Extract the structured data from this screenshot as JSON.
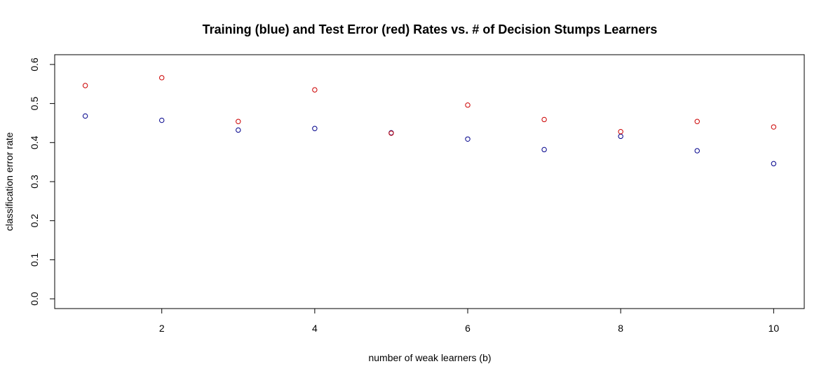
{
  "chart_data": {
    "type": "scatter",
    "title": "Training (blue) and Test Error (red) Rates vs. # of Decision Stumps Learners",
    "xlabel": "number of weak learners (b)",
    "ylabel": "classification error rate",
    "xlim": [
      0.6,
      10.4
    ],
    "ylim": [
      -0.025,
      0.625
    ],
    "xticks": [
      2,
      4,
      6,
      8,
      10
    ],
    "yticks": [
      0.0,
      0.1,
      0.2,
      0.3,
      0.4,
      0.5,
      0.6
    ],
    "xtick_labels": [
      "2",
      "4",
      "6",
      "8",
      "10"
    ],
    "ytick_labels": [
      "0.0",
      "0.1",
      "0.2",
      "0.3",
      "0.4",
      "0.5",
      "0.6"
    ],
    "grid": false,
    "x": [
      1,
      2,
      3,
      4,
      5,
      6,
      7,
      8,
      9,
      10
    ],
    "series": [
      {
        "color": "#00008B",
        "values": [
          0.468,
          0.457,
          0.432,
          0.436,
          0.425,
          0.409,
          0.382,
          0.416,
          0.379,
          0.346
        ]
      },
      {
        "color": "#CC0000",
        "values": [
          0.546,
          0.566,
          0.454,
          0.535,
          0.424,
          0.496,
          0.459,
          0.428,
          0.454,
          0.44
        ]
      }
    ]
  }
}
